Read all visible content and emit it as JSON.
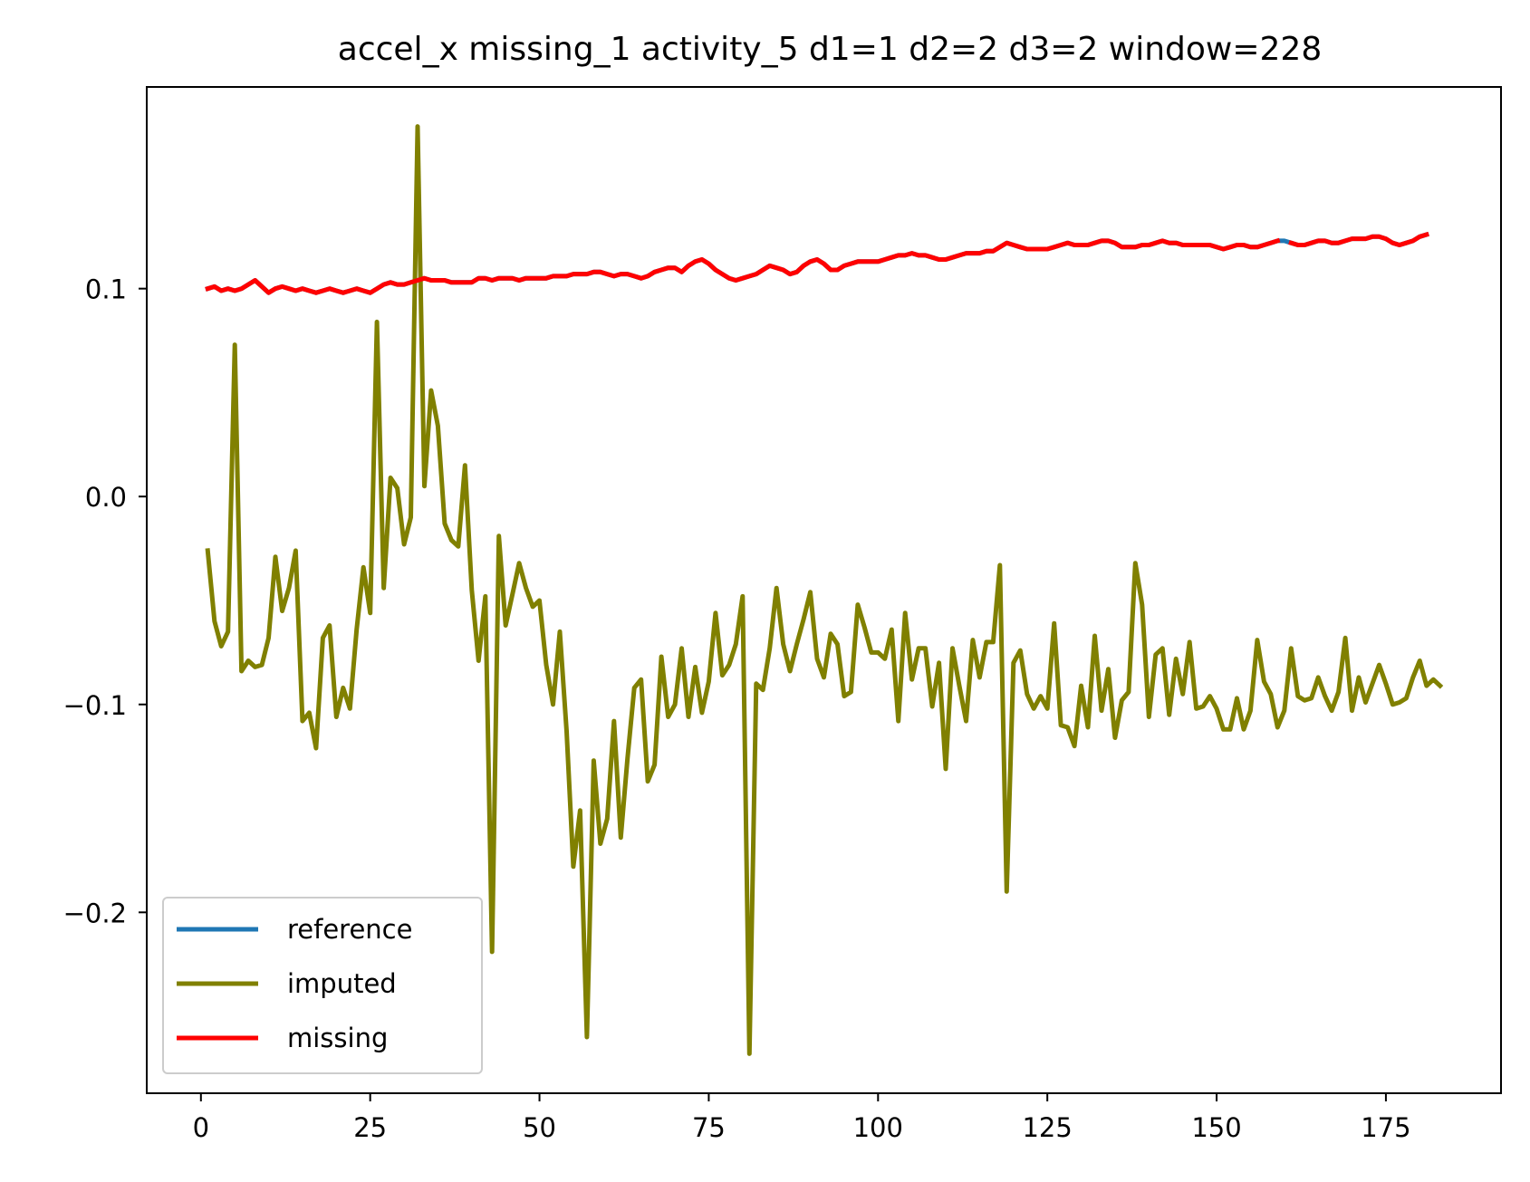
{
  "chart_data": {
    "type": "line",
    "title": "accel_x missing_1 activity_5 d1=1 d2=2 d3=2 window=228",
    "xlabel": "",
    "ylabel": "",
    "xlim": [
      -8,
      192
    ],
    "ylim": [
      -0.287,
      0.197
    ],
    "xticks": [
      0,
      25,
      50,
      75,
      100,
      125,
      150,
      175
    ],
    "xtick_labels": [
      "0",
      "25",
      "50",
      "75",
      "100",
      "125",
      "150",
      "175"
    ],
    "yticks": [
      -0.2,
      -0.1,
      0.0,
      0.1
    ],
    "ytick_labels": [
      "−0.2",
      "−0.1",
      "0.0",
      "0.1"
    ],
    "grid": false,
    "legend_position": "lower-left",
    "series": [
      {
        "name": "reference",
        "color": "#1f77b4",
        "x_start": 1,
        "values": [
          0.1,
          0.101,
          0.099,
          0.1,
          0.099,
          0.1,
          0.102,
          0.104,
          0.101,
          0.098,
          0.1,
          0.101,
          0.1,
          0.099,
          0.1,
          0.099,
          0.098,
          0.099,
          0.1,
          0.099,
          0.098,
          0.099,
          0.1,
          0.099,
          0.098,
          0.1,
          0.102,
          0.103,
          0.102,
          0.102,
          0.103,
          0.104,
          0.105,
          0.104,
          0.104,
          0.104,
          0.103,
          0.103,
          0.103,
          0.103,
          0.105,
          0.105,
          0.104,
          0.105,
          0.105,
          0.105,
          0.104,
          0.105,
          0.105,
          0.105,
          0.105,
          0.106,
          0.106,
          0.106,
          0.107,
          0.107,
          0.107,
          0.108,
          0.108,
          0.107,
          0.106,
          0.107,
          0.107,
          0.106,
          0.105,
          0.106,
          0.108,
          0.109,
          0.11,
          0.11,
          0.108,
          0.111,
          0.113,
          0.114,
          0.112,
          0.109,
          0.107,
          0.105,
          0.104,
          0.105,
          0.106,
          0.107,
          0.109,
          0.111,
          0.11,
          0.109,
          0.107,
          0.108,
          0.111,
          0.113,
          0.114,
          0.112,
          0.109,
          0.109,
          0.111,
          0.112,
          0.113,
          0.113,
          0.113,
          0.113,
          0.114,
          0.115,
          0.116,
          0.116,
          0.117,
          0.116,
          0.116,
          0.115,
          0.114,
          0.114,
          0.115,
          0.116,
          0.117,
          0.117,
          0.117,
          0.118,
          0.118,
          0.12,
          0.122,
          0.121,
          0.12,
          0.119,
          0.119,
          0.119,
          0.119,
          0.12,
          0.121,
          0.122,
          0.121,
          0.121,
          0.121,
          0.122,
          0.123,
          0.123,
          0.122,
          0.12,
          0.12,
          0.12,
          0.121,
          0.121,
          0.122,
          0.123,
          0.122,
          0.122,
          0.121,
          0.121,
          0.121,
          0.121,
          0.121,
          0.12,
          0.119,
          0.12,
          0.121,
          0.121,
          0.12,
          0.12,
          0.121,
          0.122,
          0.123,
          0.123,
          0.122,
          0.121,
          0.121,
          0.122,
          0.123,
          0.123,
          0.122,
          0.122,
          0.123,
          0.124,
          0.124,
          0.124,
          0.125,
          0.125,
          0.124,
          0.122,
          0.121,
          0.122,
          0.123,
          0.125,
          0.126
        ]
      },
      {
        "name": "imputed",
        "color": "#808000",
        "x_start": 1,
        "values": [
          -0.026,
          -0.06,
          -0.072,
          -0.065,
          0.073,
          -0.084,
          -0.079,
          -0.082,
          -0.081,
          -0.068,
          -0.029,
          -0.055,
          -0.044,
          -0.026,
          -0.108,
          -0.104,
          -0.121,
          -0.068,
          -0.062,
          -0.106,
          -0.092,
          -0.102,
          -0.064,
          -0.034,
          -0.056,
          0.084,
          -0.044,
          0.009,
          0.004,
          -0.023,
          -0.01,
          0.178,
          0.005,
          0.051,
          0.034,
          -0.013,
          -0.021,
          -0.024,
          0.015,
          -0.045,
          -0.079,
          -0.048,
          -0.219,
          -0.019,
          -0.062,
          -0.047,
          -0.032,
          -0.044,
          -0.053,
          -0.05,
          -0.081,
          -0.1,
          -0.065,
          -0.113,
          -0.178,
          -0.151,
          -0.26,
          -0.127,
          -0.167,
          -0.155,
          -0.108,
          -0.164,
          -0.126,
          -0.092,
          -0.088,
          -0.137,
          -0.129,
          -0.077,
          -0.106,
          -0.1,
          -0.073,
          -0.106,
          -0.082,
          -0.104,
          -0.089,
          -0.056,
          -0.086,
          -0.081,
          -0.071,
          -0.048,
          -0.268,
          -0.09,
          -0.093,
          -0.073,
          -0.044,
          -0.071,
          -0.084,
          -0.071,
          -0.059,
          -0.046,
          -0.078,
          -0.087,
          -0.066,
          -0.071,
          -0.096,
          -0.094,
          -0.052,
          -0.063,
          -0.075,
          -0.075,
          -0.078,
          -0.064,
          -0.108,
          -0.056,
          -0.088,
          -0.073,
          -0.073,
          -0.101,
          -0.08,
          -0.131,
          -0.073,
          -0.091,
          -0.108,
          -0.069,
          -0.087,
          -0.07,
          -0.07,
          -0.033,
          -0.19,
          -0.08,
          -0.074,
          -0.095,
          -0.102,
          -0.096,
          -0.102,
          -0.061,
          -0.11,
          -0.111,
          -0.12,
          -0.091,
          -0.111,
          -0.067,
          -0.103,
          -0.083,
          -0.116,
          -0.098,
          -0.094,
          -0.032,
          -0.052,
          -0.106,
          -0.076,
          -0.073,
          -0.105,
          -0.078,
          -0.095,
          -0.07,
          -0.102,
          -0.101,
          -0.096,
          -0.102,
          -0.112,
          -0.112,
          -0.097,
          -0.112,
          -0.103,
          -0.069,
          -0.089,
          -0.095,
          -0.111,
          -0.103,
          -0.073,
          -0.096,
          -0.098,
          -0.097,
          -0.087,
          -0.096,
          -0.103,
          -0.094,
          -0.068,
          -0.103,
          -0.087,
          -0.099,
          -0.09,
          -0.081,
          -0.09,
          -0.1,
          -0.099,
          -0.097,
          -0.087,
          -0.079,
          -0.091,
          -0.088,
          -0.091
        ]
      },
      {
        "name": "missing",
        "color": "#ff0000",
        "x_start": 1,
        "values": [
          0.1,
          0.101,
          0.099,
          0.1,
          0.099,
          0.1,
          0.102,
          0.104,
          0.101,
          0.098,
          0.1,
          0.101,
          0.1,
          0.099,
          0.1,
          0.099,
          0.098,
          0.099,
          0.1,
          0.099,
          0.098,
          0.099,
          0.1,
          0.099,
          0.098,
          0.1,
          0.102,
          0.103,
          0.102,
          0.102,
          0.103,
          0.104,
          0.105,
          0.104,
          0.104,
          0.104,
          0.103,
          0.103,
          0.103,
          0.103,
          0.105,
          0.105,
          0.104,
          0.105,
          0.105,
          0.105,
          0.104,
          0.105,
          0.105,
          0.105,
          0.105,
          0.106,
          0.106,
          0.106,
          0.107,
          0.107,
          0.107,
          0.108,
          0.108,
          0.107,
          0.106,
          0.107,
          0.107,
          0.106,
          0.105,
          0.106,
          0.108,
          0.109,
          0.11,
          0.11,
          0.108,
          0.111,
          0.113,
          0.114,
          0.112,
          0.109,
          0.107,
          0.105,
          0.104,
          0.105,
          0.106,
          0.107,
          0.109,
          0.111,
          0.11,
          0.109,
          0.107,
          0.108,
          0.111,
          0.113,
          0.114,
          0.112,
          0.109,
          0.109,
          0.111,
          0.112,
          0.113,
          0.113,
          0.113,
          0.113,
          0.114,
          0.115,
          0.116,
          0.116,
          0.117,
          0.116,
          0.116,
          0.115,
          0.114,
          0.114,
          0.115,
          0.116,
          0.117,
          0.117,
          0.117,
          0.118,
          0.118,
          0.12,
          0.122,
          0.121,
          0.12,
          0.119,
          0.119,
          0.119,
          0.119,
          0.12,
          0.121,
          0.122,
          0.121,
          0.121,
          0.121,
          0.122,
          0.123,
          0.123,
          0.122,
          0.12,
          0.12,
          0.12,
          0.121,
          0.121,
          0.122,
          0.123,
          0.122,
          0.122,
          0.121,
          0.121,
          0.121,
          0.121,
          0.121,
          0.12,
          0.119,
          0.12,
          0.121,
          0.121,
          0.12,
          0.12,
          0.121,
          0.122,
          0.123,
          null,
          0.122,
          0.121,
          0.121,
          0.122,
          0.123,
          0.123,
          0.122,
          0.122,
          0.123,
          0.124,
          0.124,
          0.124,
          0.125,
          0.125,
          0.124,
          0.122,
          0.121,
          0.122,
          0.123,
          0.125,
          0.126
        ]
      }
    ]
  }
}
